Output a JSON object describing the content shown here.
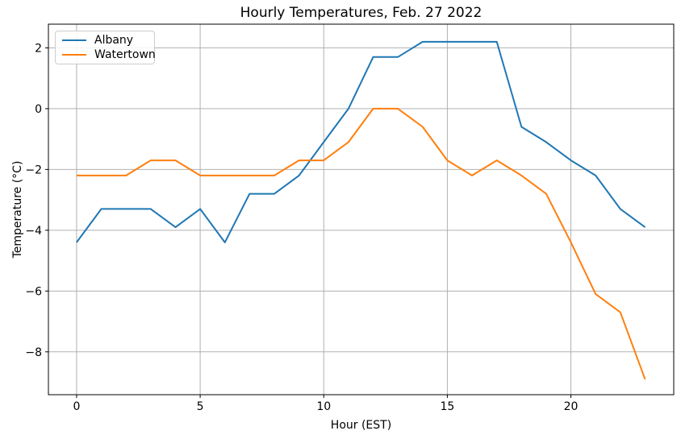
{
  "chart_data": {
    "type": "line",
    "title": "Hourly Temperatures, Feb. 27 2022",
    "xlabel": "Hour (EST)",
    "ylabel": "Temperature (°C)",
    "x": [
      0,
      1,
      2,
      3,
      4,
      5,
      6,
      7,
      8,
      9,
      10,
      11,
      12,
      13,
      14,
      15,
      16,
      17,
      18,
      19,
      20,
      21,
      22,
      23
    ],
    "series": [
      {
        "name": "Albany",
        "color": "#1f77b4",
        "values": [
          -4.4,
          -3.3,
          -3.3,
          -3.3,
          -3.9,
          -3.3,
          -4.4,
          -2.8,
          -2.8,
          -2.2,
          -1.1,
          0.0,
          1.7,
          1.7,
          2.2,
          2.2,
          2.2,
          2.2,
          -0.6,
          -1.1,
          -1.7,
          -2.2,
          -3.3,
          -3.9
        ]
      },
      {
        "name": "Watertown",
        "color": "#ff7f0e",
        "values": [
          -2.2,
          -2.2,
          -2.2,
          -1.7,
          -1.7,
          -2.2,
          -2.2,
          -2.2,
          -2.2,
          -1.7,
          -1.7,
          -1.1,
          0.0,
          0.0,
          -0.6,
          -1.7,
          -2.2,
          -1.7,
          -2.2,
          -2.8,
          -4.4,
          -6.1,
          -6.7,
          -8.9
        ]
      }
    ],
    "xticks": [
      0,
      5,
      10,
      15,
      20
    ],
    "yticks": [
      2,
      0,
      -2,
      -4,
      -6,
      -8
    ],
    "xlim": [
      -1.14,
      24.16
    ],
    "ylim": [
      -9.41,
      2.78
    ],
    "grid": true,
    "legend_position": "upper left"
  },
  "styles": {
    "grid_color": "#b0b0b0",
    "spine_color": "#000000",
    "tick_label_color": "#000000",
    "background": "#ffffff",
    "legend_border_color": "#cccccc"
  }
}
